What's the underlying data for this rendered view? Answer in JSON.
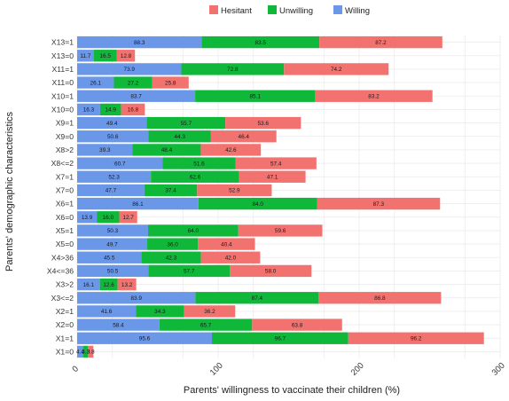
{
  "chart_data": {
    "type": "bar",
    "orientation": "horizontal",
    "stacked": true,
    "title": "",
    "xlabel": "Parents' willingness to vaccinate their children (%)",
    "ylabel": "Parents' demographic characteristics",
    "xlim": [
      0,
      300
    ],
    "x_ticks": [
      0,
      100,
      200,
      300
    ],
    "grid": true,
    "legend_position": "top",
    "legend_order": [
      "Hesitant",
      "Unwilling",
      "Willing"
    ],
    "categories": [
      "X13=1",
      "X13=0",
      "X11=1",
      "X11=0",
      "X10=1",
      "X10=0",
      "X9=1",
      "X9=0",
      "X8>2",
      "X8<=2",
      "X7=1",
      "X7=0",
      "X6=1",
      "X6=0",
      "X5=1",
      "X5=0",
      "X4>36",
      "X4<=36",
      "X3>2",
      "X3<=2",
      "X2=1",
      "X2=0",
      "X1=1",
      "X1=0"
    ],
    "series": [
      {
        "name": "Willing",
        "color": "#6b97e8",
        "values": [
          88.3,
          11.7,
          73.9,
          26.1,
          83.7,
          16.3,
          49.4,
          50.6,
          39.3,
          60.7,
          52.3,
          47.7,
          86.1,
          13.9,
          50.3,
          49.7,
          45.5,
          50.5,
          16.1,
          83.9,
          41.6,
          58.4,
          95.6,
          4.4
        ]
      },
      {
        "name": "Unwilling",
        "color": "#10b83a",
        "values": [
          83.5,
          16.5,
          72.8,
          27.2,
          85.1,
          14.9,
          55.7,
          44.3,
          48.4,
          51.6,
          62.6,
          37.4,
          84.0,
          16.0,
          64.0,
          36.0,
          42.3,
          57.7,
          12.6,
          87.4,
          34.3,
          65.7,
          96.7,
          3.3
        ]
      },
      {
        "name": "Hesitant",
        "color": "#f2726f",
        "values": [
          87.2,
          12.8,
          74.2,
          25.8,
          83.2,
          16.8,
          53.6,
          46.4,
          42.6,
          57.4,
          47.1,
          52.9,
          87.3,
          12.7,
          59.6,
          40.4,
          42.0,
          58.0,
          13.2,
          86.8,
          36.2,
          63.8,
          96.2,
          3.8
        ]
      }
    ]
  }
}
